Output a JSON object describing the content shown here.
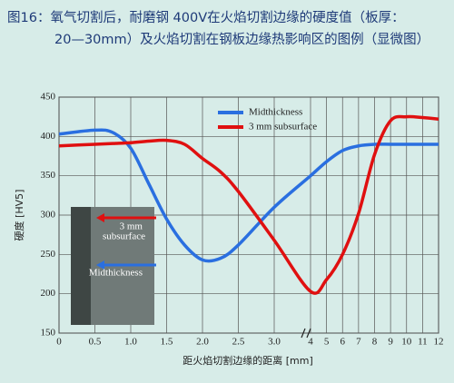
{
  "chart_data": {
    "type": "line",
    "title": [
      "图16：氧气切割后，耐磨钢 400V在火焰切割边缘的硬度值（板厚：",
      "20—30mm）及火焰切割在钢板边缘热影响区的图例（显微图）"
    ],
    "x_label": "距火焰切割边缘的距离 [mm]",
    "y_label": "硬度 [HV5]",
    "x": [
      0,
      0.5,
      0.75,
      1.0,
      1.25,
      1.5,
      1.75,
      2.0,
      2.25,
      2.5,
      3.0,
      4,
      5,
      6,
      7,
      8,
      9,
      10,
      11,
      12
    ],
    "series": [
      {
        "name": "Midthickness",
        "color": "#2a6fe0",
        "values": [
          403,
          408,
          405,
          385,
          340,
          295,
          262,
          243,
          245,
          262,
          310,
          350,
          368,
          382,
          388,
          390,
          390,
          390,
          390,
          390
        ]
      },
      {
        "name": "3 mm subsurface",
        "color": "#e01010",
        "values": [
          388,
          390,
          391,
          392,
          394,
          395,
          390,
          372,
          355,
          330,
          268,
          203,
          218,
          250,
          302,
          377,
          420,
          425,
          424,
          422
        ]
      }
    ],
    "xlim": [
      0,
      12
    ],
    "xbreak": [
      3.0,
      4
    ],
    "xticks": [
      0,
      0.5,
      {
        "value": 1.0,
        "label": "1.0"
      },
      1.5,
      {
        "value": 2.0,
        "label": "2.0"
      },
      2.5,
      {
        "value": 3.0,
        "label": "3.0"
      },
      4,
      5,
      6,
      7,
      8,
      9,
      10,
      11,
      12
    ],
    "ylim": [
      150,
      450
    ],
    "yticks": [
      150,
      200,
      250,
      300,
      350,
      400,
      450
    ],
    "grid": true,
    "annotations": [
      "3 mm",
      "subsurface",
      "Midthickness"
    ]
  }
}
